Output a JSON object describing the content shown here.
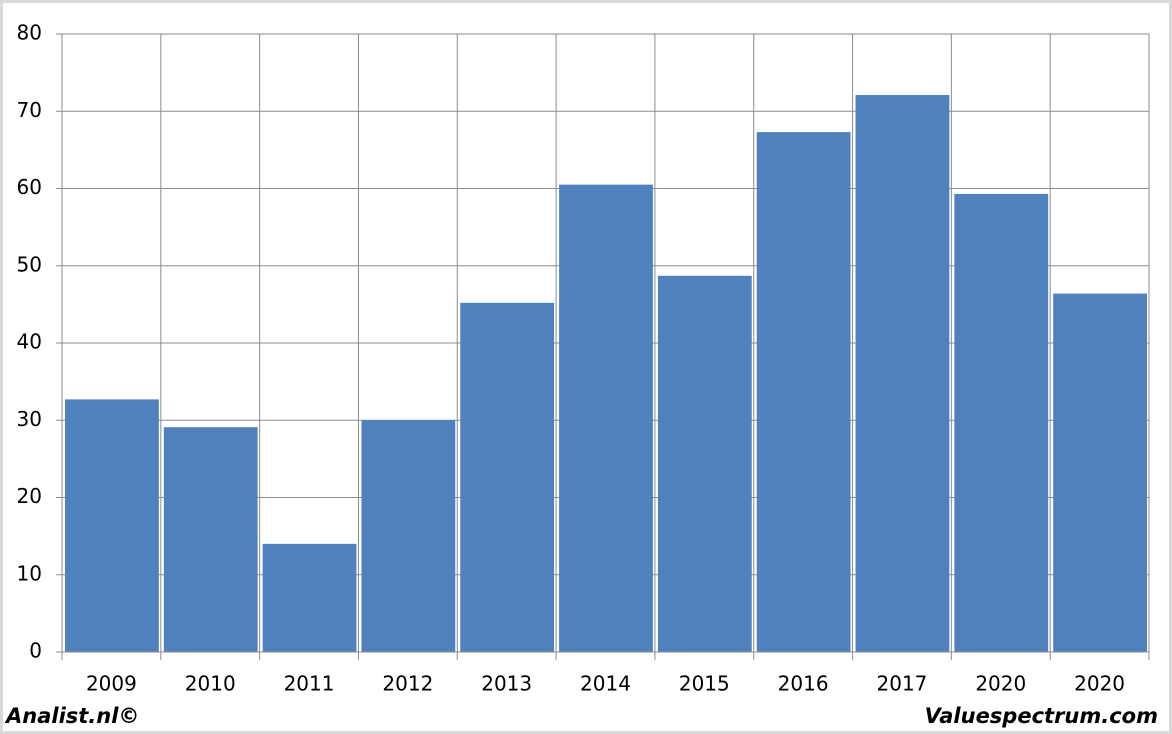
{
  "chart_data": {
    "type": "bar",
    "categories": [
      "2009",
      "2010",
      "2011",
      "2012",
      "2013",
      "2014",
      "2015",
      "2016",
      "2017",
      "2020",
      "2020"
    ],
    "values": [
      32.7,
      29.1,
      14,
      30,
      45.2,
      60.5,
      48.7,
      67.3,
      72.1,
      59.3,
      46.4
    ],
    "color": "#4f81bd",
    "ylim": [
      0,
      80
    ],
    "yticks": [
      0,
      10,
      20,
      30,
      40,
      50,
      60,
      70,
      80
    ],
    "grid": true,
    "source_left": "Analist.nl©",
    "source_right": "Valuespectrum.com"
  }
}
